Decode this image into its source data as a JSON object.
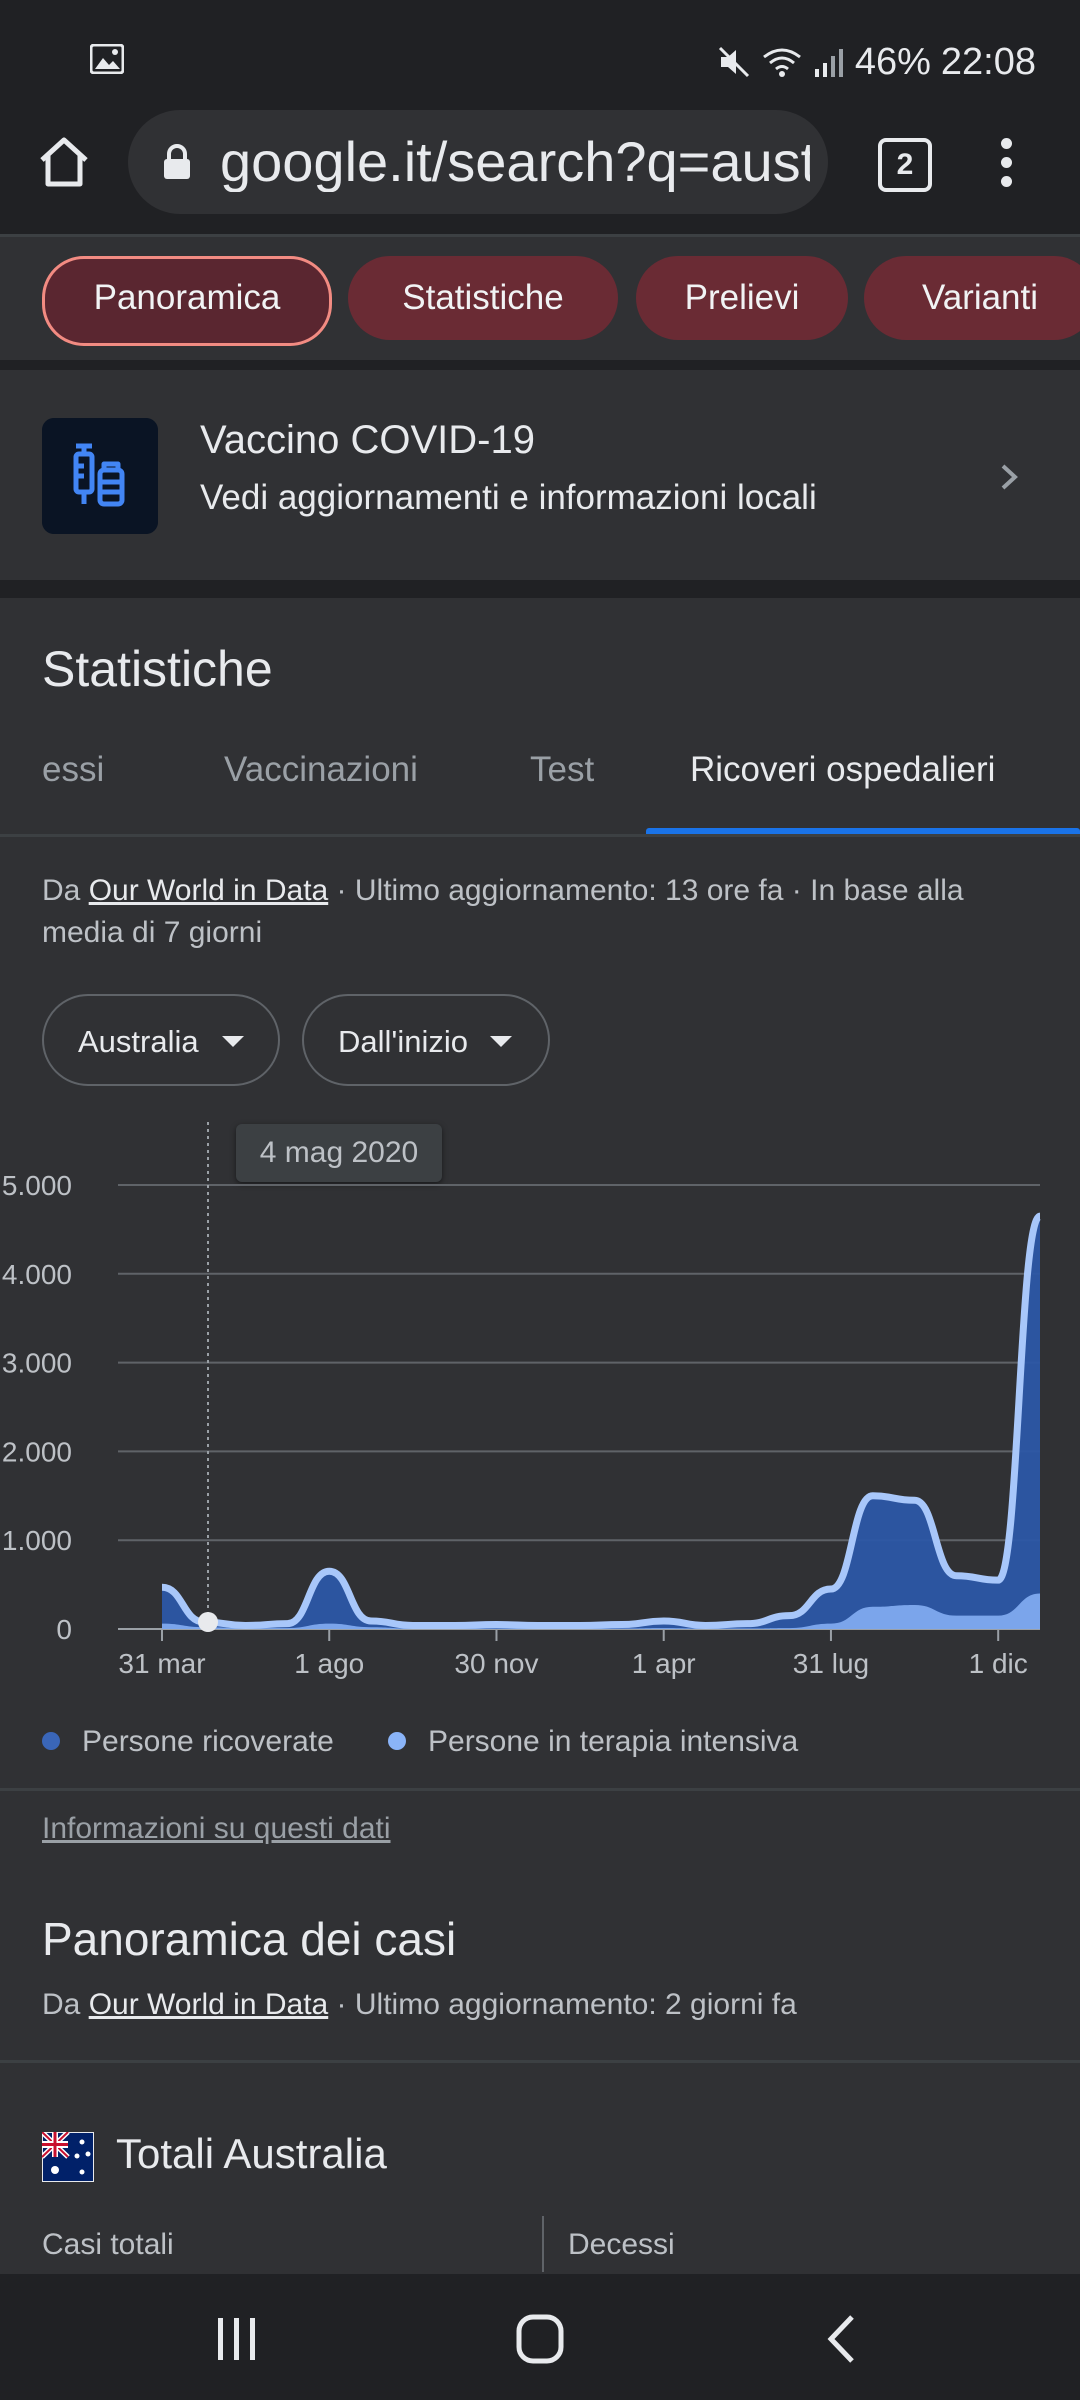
{
  "status_bar": {
    "battery": "46%",
    "time": "22:08",
    "icons": [
      "image-icon",
      "mute-icon",
      "wifi-icon",
      "signal-icon"
    ]
  },
  "browser": {
    "url": "google.it/search?q=aust",
    "tab_count": "2"
  },
  "chips": [
    "Panoramica",
    "Statistiche",
    "Prelievi",
    "Varianti"
  ],
  "vaccine_card": {
    "title": "Vaccino COVID-19",
    "subtitle": "Vedi aggiornamenti e informazioni locali"
  },
  "stats": {
    "title": "Statistiche",
    "tabs": [
      "essi",
      "Vaccinazioni",
      "Test",
      "Ricoveri ospedalieri"
    ],
    "active_tab": "Ricoveri ospedalieri",
    "source_prefix": "Da ",
    "source_link": "Our World in Data",
    "source_suffix": " · Ultimo aggiornamento: 13 ore fa · In base alla media di 7 giorni",
    "country_dropdown": "Australia",
    "range_dropdown": "Dall'inizio",
    "tooltip": "4 mag 2020",
    "legend": [
      "Persone ricoverate",
      "Persone in terapia intensiva"
    ],
    "info_link": "Informazioni su questi dati"
  },
  "chart_data": {
    "type": "area",
    "ylim": [
      0,
      5000
    ],
    "y_ticks": [
      "5.000",
      "4.000",
      "3.000",
      "2.000",
      "1.000",
      "0"
    ],
    "y_tick_values": [
      5000,
      4000,
      3000,
      2000,
      1000,
      0
    ],
    "x_ticks": [
      "31 mar",
      "1 ago",
      "30 nov",
      "1 apr",
      "31 lug",
      "1 dic"
    ],
    "x_tick_index": [
      0,
      4,
      8,
      12,
      16,
      20
    ],
    "selected_index": 1,
    "series": [
      {
        "name": "Persone ricoverate",
        "color": "#3a66b8",
        "values": [
          470,
          80,
          40,
          60,
          650,
          90,
          40,
          40,
          50,
          40,
          40,
          50,
          90,
          40,
          60,
          150,
          450,
          1500,
          1450,
          600,
          550,
          4650
        ]
      },
      {
        "name": "Persone in terapia intensiva",
        "color": "#8ab4f8",
        "values": [
          60,
          20,
          10,
          10,
          60,
          20,
          5,
          5,
          5,
          5,
          5,
          5,
          10,
          5,
          5,
          10,
          60,
          250,
          270,
          150,
          150,
          400
        ]
      }
    ]
  },
  "cases": {
    "title": "Panoramica dei casi",
    "source_prefix": "Da ",
    "source_link": "Our World in Data",
    "source_suffix": " · Ultimo aggiornamento: 2 giorni fa",
    "totals_title": "Totali Australia",
    "col1": "Casi totali",
    "col2": "Decessi"
  },
  "colors": {
    "accent": "#1a73e8",
    "chip_bg": "#6a2b34",
    "chip_border": "#f28b82",
    "background": "#303134"
  }
}
